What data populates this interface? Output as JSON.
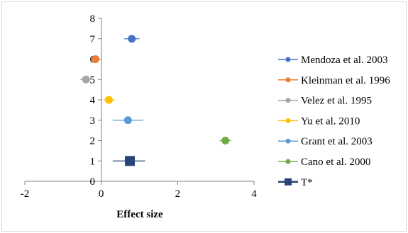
{
  "chart_data": {
    "type": "scatter",
    "title": "",
    "xlabel": "Effect size",
    "ylabel": "",
    "xlim": [
      -2,
      4
    ],
    "ylim": [
      0,
      8
    ],
    "x_ticks": [
      "-2",
      "0",
      "2",
      "4"
    ],
    "y_ticks": [
      "0",
      "1",
      "2",
      "3",
      "4",
      "5",
      "6",
      "7",
      "8"
    ],
    "grid": false,
    "legend_position": "right",
    "series": [
      {
        "name": "Mendoza et al. 2003",
        "color": "#4472C4",
        "marker": "circle",
        "x": 0.8,
        "y": 7,
        "err_low": 0.6,
        "err_high": 1.0
      },
      {
        "name": "Kleinman et al. 1996",
        "color": "#ED7D31",
        "marker": "circle",
        "x": -0.15,
        "y": 6,
        "err_low": -0.25,
        "err_high": -0.05
      },
      {
        "name": "Velez et al. 1995",
        "color": "#A5A5A5",
        "marker": "circle",
        "x": -0.4,
        "y": 5,
        "err_low": -0.55,
        "err_high": -0.25
      },
      {
        "name": "Yu et al. 2010",
        "color": "#FFC000",
        "marker": "circle",
        "x": 0.2,
        "y": 4,
        "err_low": 0.05,
        "err_high": 0.35
      },
      {
        "name": "Grant et al. 2003",
        "color": "#5B9BD5",
        "marker": "circle",
        "x": 0.7,
        "y": 3,
        "err_low": 0.3,
        "err_high": 1.1
      },
      {
        "name": "Cano et al. 2000",
        "color": "#70AD47",
        "marker": "circle",
        "x": 3.25,
        "y": 2,
        "err_low": 3.1,
        "err_high": 3.4
      },
      {
        "name": "T*",
        "color": "#264478",
        "marker": "square",
        "x": 0.75,
        "y": 1,
        "err_low": 0.3,
        "err_high": 1.15
      }
    ]
  }
}
